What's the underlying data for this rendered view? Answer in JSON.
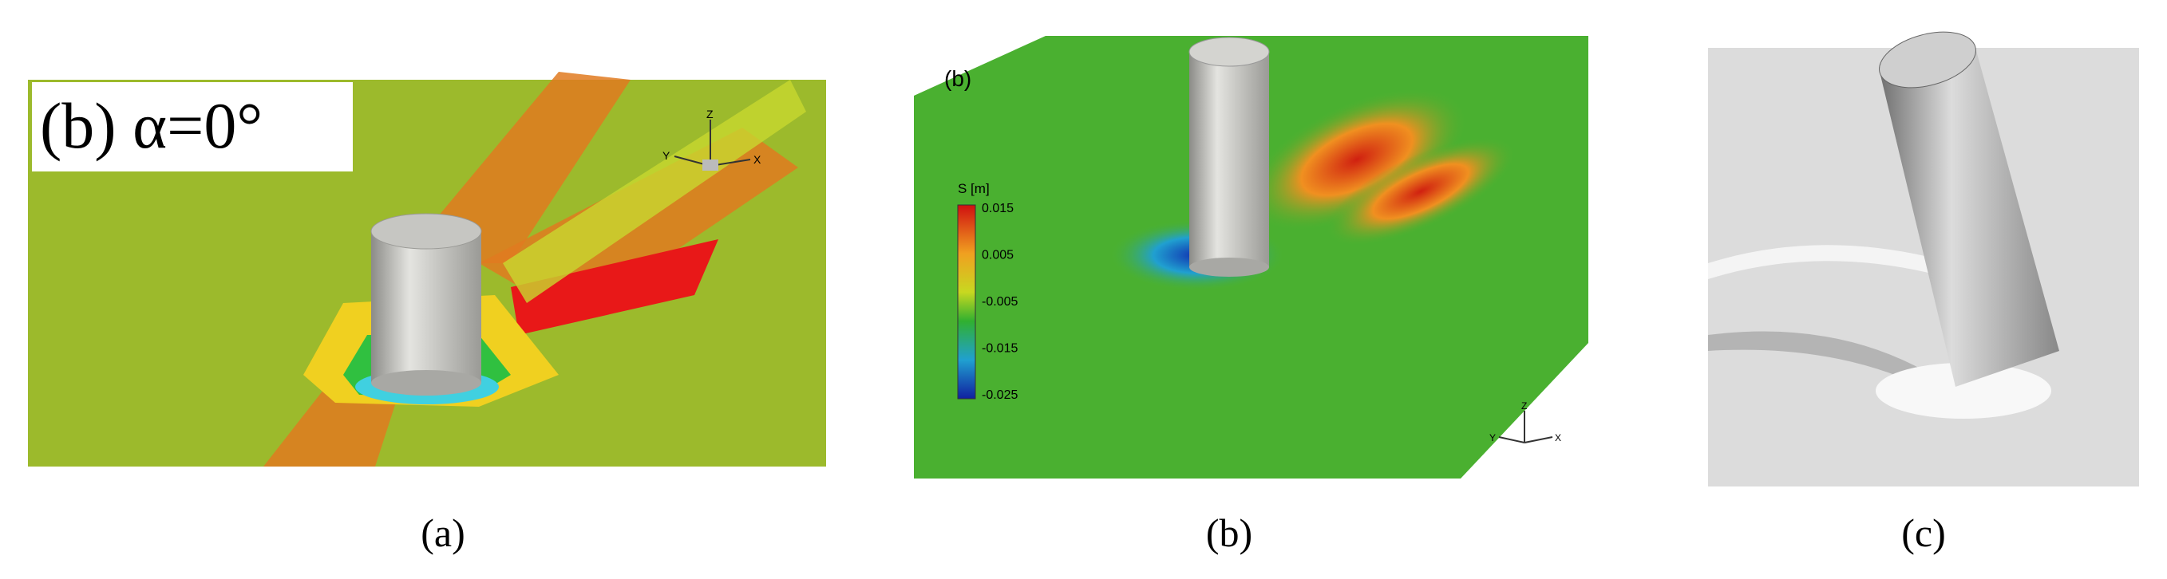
{
  "panels": [
    {
      "title": "(b) α=0°",
      "axes": {
        "z": "Z",
        "x": "X",
        "y": "Y"
      },
      "caption": "(a)"
    },
    {
      "title": "(b)",
      "legend": {
        "title": "S [m]",
        "labels": [
          "0.015",
          "0.005",
          "-0.005",
          "-0.015",
          "-0.025"
        ]
      },
      "axes": {
        "z": "Z",
        "x": "X",
        "y": "Y"
      },
      "caption": "(b)"
    },
    {
      "caption": "(c)"
    }
  ]
}
